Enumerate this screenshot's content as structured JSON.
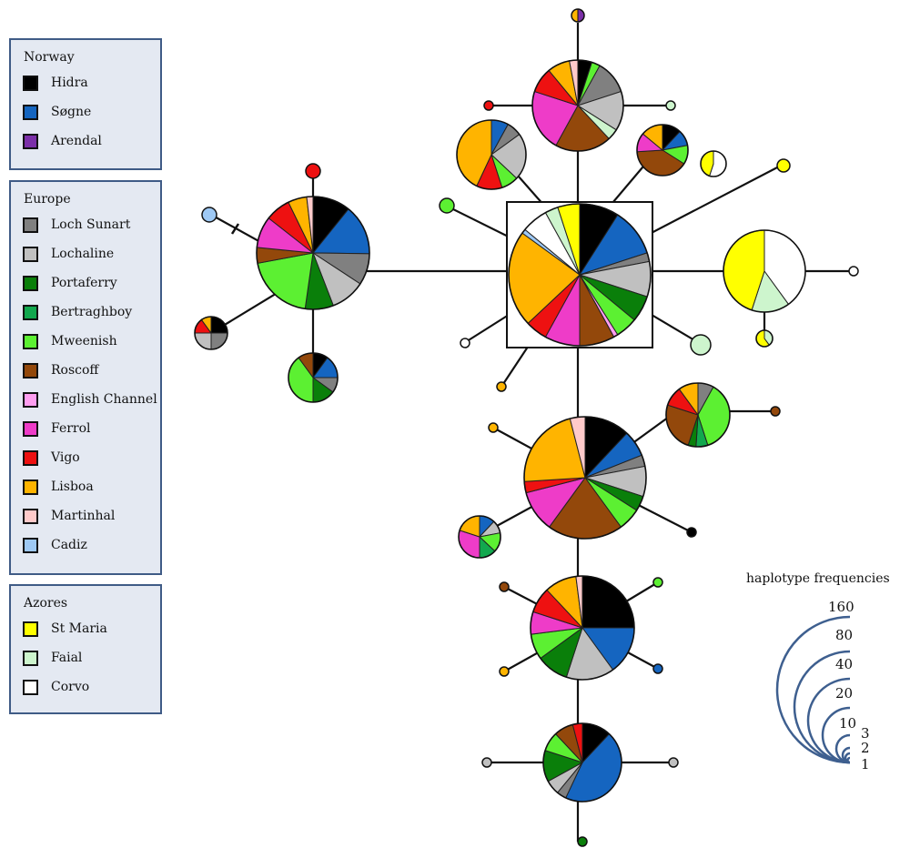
{
  "legend": {
    "groups": [
      {
        "title": "Norway",
        "items": [
          {
            "label": "Hidra",
            "color": "#000000"
          },
          {
            "label": "Søgne",
            "color": "#1565c0"
          },
          {
            "label": "Arendal",
            "color": "#7b2fa8"
          }
        ]
      },
      {
        "title": "Europe",
        "items": [
          {
            "label": "Loch Sunart",
            "color": "#808080"
          },
          {
            "label": "Lochaline",
            "color": "#c0c0c0"
          },
          {
            "label": "Portaferry",
            "color": "#0a7f0a"
          },
          {
            "label": "Bertraghboy",
            "color": "#12a84e"
          },
          {
            "label": "Mweenish",
            "color": "#5cf032"
          },
          {
            "label": "Roscoff",
            "color": "#93480b"
          },
          {
            "label": "English Channel",
            "color": "#ff9ef0"
          },
          {
            "label": "Ferrol",
            "color": "#ee3cc8"
          },
          {
            "label": "Vigo",
            "color": "#ee1111"
          },
          {
            "label": "Lisboa",
            "color": "#ffb400"
          },
          {
            "label": "Martinhal",
            "color": "#ffcaca"
          },
          {
            "label": "Cadiz",
            "color": "#9ec9f5"
          }
        ]
      },
      {
        "title": "Azores",
        "items": [
          {
            "label": "St Maria",
            "color": "#ffff00"
          },
          {
            "label": "Faial",
            "color": "#cdf5cd"
          },
          {
            "label": "Corvo",
            "color": "#ffffff"
          }
        ]
      }
    ]
  },
  "scale": {
    "title": "haplotype frequencies",
    "labels": [
      "160",
      "80",
      "40",
      "20",
      "10",
      "3",
      "2",
      "1"
    ]
  }
}
